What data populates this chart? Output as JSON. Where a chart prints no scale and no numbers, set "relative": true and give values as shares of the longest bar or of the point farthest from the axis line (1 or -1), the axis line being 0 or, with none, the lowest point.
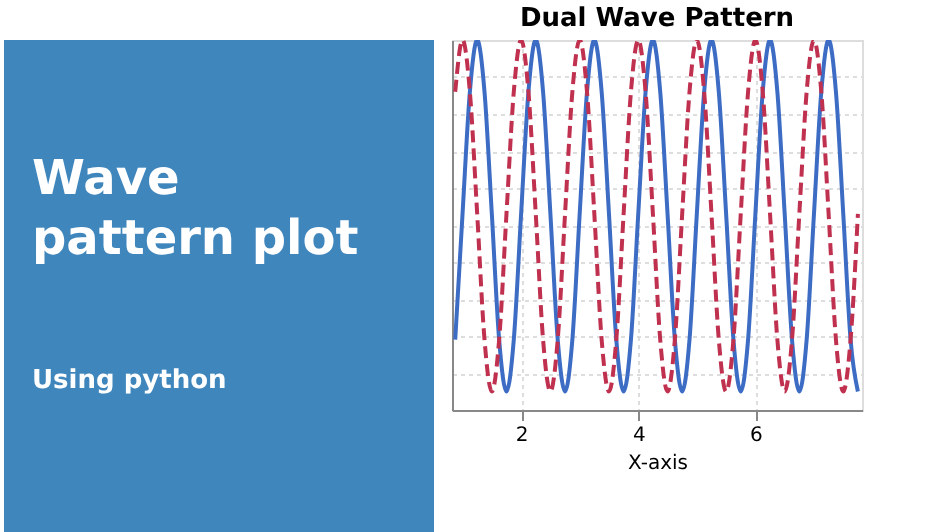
{
  "chart_data": {
    "type": "line",
    "title": "Dual Wave Pattern",
    "xlabel": "X-axis",
    "annotations": [
      "Wave pattern plot",
      "Using python"
    ],
    "relative": true,
    "grid": true,
    "tick_labels": "x",
    "xlim": [
      0.82,
      7.82
    ],
    "xticks": [
      2,
      4,
      6
    ],
    "x": [
      0.875,
      1,
      1.125,
      1.25,
      1.375,
      1.5,
      1.625,
      1.75,
      1.875,
      2,
      2.125,
      2.25,
      2.375,
      2.5,
      2.625,
      2.75,
      2.875,
      3,
      3.125,
      3.25,
      3.375,
      3.5,
      3.625,
      3.75,
      3.875,
      4,
      4.125,
      4.25,
      4.375,
      4.5,
      4.625,
      4.75,
      4.875,
      5,
      5.125,
      5.25,
      5.375,
      5.5,
      5.625,
      5.75,
      5.875,
      6,
      6.125,
      6.25,
      6.375,
      6.5,
      6.625,
      6.75,
      6.875,
      7,
      7.125,
      7.25,
      7.375,
      7.5,
      7.625,
      7.75
    ],
    "series": [
      {
        "color": "#3d6cc4",
        "line_style": "solid",
        "values": [
          0.19,
          0.53,
          0.86,
          1,
          0.86,
          0.53,
          0.19,
          0.05,
          0.19,
          0.53,
          0.86,
          1,
          0.86,
          0.53,
          0.19,
          0.05,
          0.19,
          0.53,
          0.86,
          1,
          0.86,
          0.53,
          0.19,
          0.05,
          0.19,
          0.53,
          0.86,
          1,
          0.86,
          0.53,
          0.19,
          0.05,
          0.19,
          0.53,
          0.86,
          1,
          0.86,
          0.53,
          0.19,
          0.05,
          0.19,
          0.53,
          0.86,
          1,
          0.86,
          0.53,
          0.19,
          0.05,
          0.19,
          0.53,
          0.86,
          1,
          0.86,
          0.53,
          0.19,
          0.05
        ]
      },
      {
        "color": "#c0304f",
        "line_style": "dashed",
        "values": [
          0.86,
          1,
          0.86,
          0.53,
          0.19,
          0.05,
          0.19,
          0.53,
          0.86,
          1,
          0.86,
          0.53,
          0.19,
          0.05,
          0.19,
          0.53,
          0.86,
          1,
          0.86,
          0.53,
          0.19,
          0.05,
          0.19,
          0.53,
          0.86,
          1,
          0.86,
          0.53,
          0.19,
          0.05,
          0.19,
          0.53,
          0.86,
          1,
          0.86,
          0.53,
          0.19,
          0.05,
          0.19,
          0.53,
          0.86,
          1,
          0.86,
          0.53,
          0.19,
          0.05,
          0.19,
          0.53,
          0.86,
          1,
          0.86,
          0.53,
          0.19,
          0.05,
          0.19,
          0.53
        ]
      }
    ]
  }
}
